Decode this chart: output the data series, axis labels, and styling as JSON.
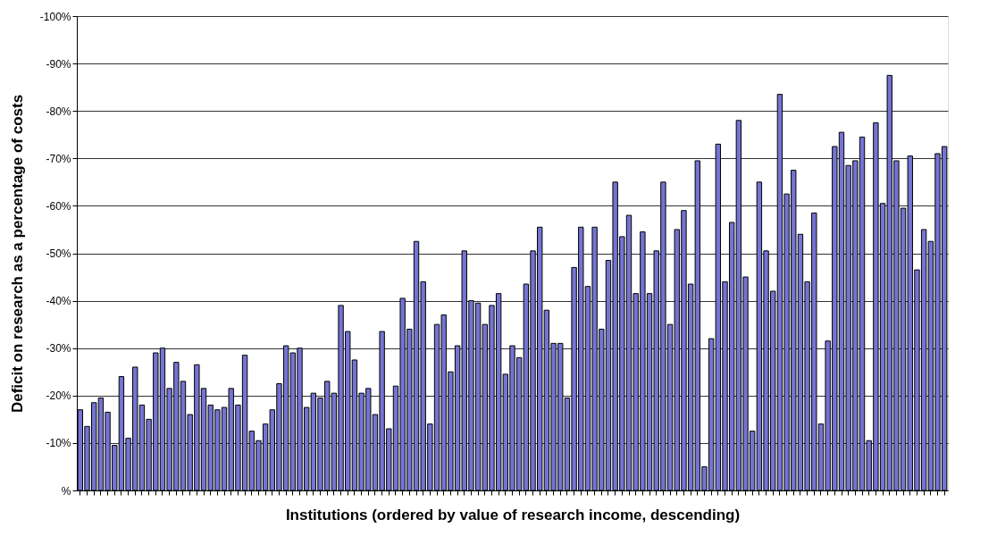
{
  "chart_data": {
    "type": "bar",
    "xlabel": "Institutions (ordered by value of research income, descending)",
    "ylabel": "Deficit on research as a percentage of costs",
    "categories": [
      null,
      null,
      null,
      null,
      null,
      null,
      null,
      null,
      null,
      null,
      null,
      null,
      null,
      null,
      null,
      null,
      null,
      null,
      null,
      null,
      null,
      null,
      null,
      null,
      null,
      null,
      null,
      null,
      null,
      null,
      null,
      null,
      null,
      null,
      null,
      null,
      null,
      null,
      null,
      null,
      null,
      null,
      null,
      null,
      null,
      null,
      null,
      null,
      null,
      null,
      null,
      null,
      null,
      null,
      null,
      null,
      null,
      null,
      null,
      null,
      null,
      null,
      null,
      null,
      null,
      null,
      null,
      null,
      null,
      null,
      null,
      null,
      null,
      null,
      null,
      null,
      null,
      null,
      null,
      null,
      null,
      null,
      null,
      null,
      null,
      null,
      null,
      null,
      null,
      null,
      null,
      null,
      null,
      null,
      null,
      null,
      null,
      null,
      null,
      null,
      null,
      null,
      null,
      null,
      null,
      null,
      null,
      null,
      null,
      null,
      null,
      null,
      null,
      null,
      null,
      null,
      null,
      null,
      null,
      null,
      null,
      null,
      null,
      null,
      null,
      null,
      null
    ],
    "values": [
      -17,
      -13.5,
      -18.5,
      -19.5,
      -16.5,
      -9.5,
      -24,
      -11,
      -26,
      -18,
      -15,
      -29,
      -30,
      -21.5,
      -27,
      -23,
      -16,
      -26.5,
      -21.5,
      -18,
      -17,
      -17.5,
      -21.5,
      -18,
      -28.5,
      -12.5,
      -10.5,
      -14,
      -17,
      -22.5,
      -30.5,
      -29,
      -30,
      -17.5,
      -20.5,
      -19.5,
      -23,
      -20.5,
      -39,
      -33.5,
      -27.5,
      -20.5,
      -21.5,
      -16,
      -33.5,
      -13,
      -22,
      -40.5,
      -34,
      -52.5,
      -44,
      -14,
      -35,
      -37,
      -25,
      -30.5,
      -50.5,
      -40,
      -39.5,
      -35,
      -39,
      -41.5,
      -24.5,
      -30.5,
      -28,
      -43.5,
      -50.5,
      -55.5,
      -38,
      -31,
      -31,
      -19.5,
      -47,
      -55.5,
      -43,
      -55.5,
      -34,
      -48.5,
      -65,
      -53.5,
      -58,
      -41.5,
      -54.5,
      -41.5,
      -50.5,
      -65,
      -35,
      -55,
      -59,
      -43.5,
      -69.5,
      -5,
      -32,
      -73,
      -44,
      -56.5,
      -78,
      -45,
      -12.5,
      -65,
      -50.5,
      -42,
      -83.5,
      -62.5,
      -67.5,
      -54,
      -44,
      -58.5,
      -14,
      -31.5,
      -72.5,
      -75.5,
      -68.5,
      -69.5,
      -74.5,
      -10.5,
      -77.5,
      -60.5,
      -87.5,
      -69.5,
      -59.5,
      -70.5,
      -46.5,
      -55,
      -52.5,
      -71,
      -72.5
    ],
    "color": "#7474d4",
    "ylim": [
      0,
      -100
    ],
    "yticks": [
      {
        "value": 0,
        "label": "%"
      },
      {
        "value": -10,
        "label": "-10%"
      },
      {
        "value": -20,
        "label": "-20%"
      },
      {
        "value": -30,
        "label": "-30%"
      },
      {
        "value": -40,
        "label": "-40%"
      },
      {
        "value": -50,
        "label": "-50%"
      },
      {
        "value": -60,
        "label": "-60%"
      },
      {
        "value": -70,
        "label": "-70%"
      },
      {
        "value": -80,
        "label": "-80%"
      },
      {
        "value": -90,
        "label": "-90%"
      },
      {
        "value": -100,
        "label": "-100%"
      }
    ],
    "grid": "y",
    "tick_labels": "y"
  }
}
